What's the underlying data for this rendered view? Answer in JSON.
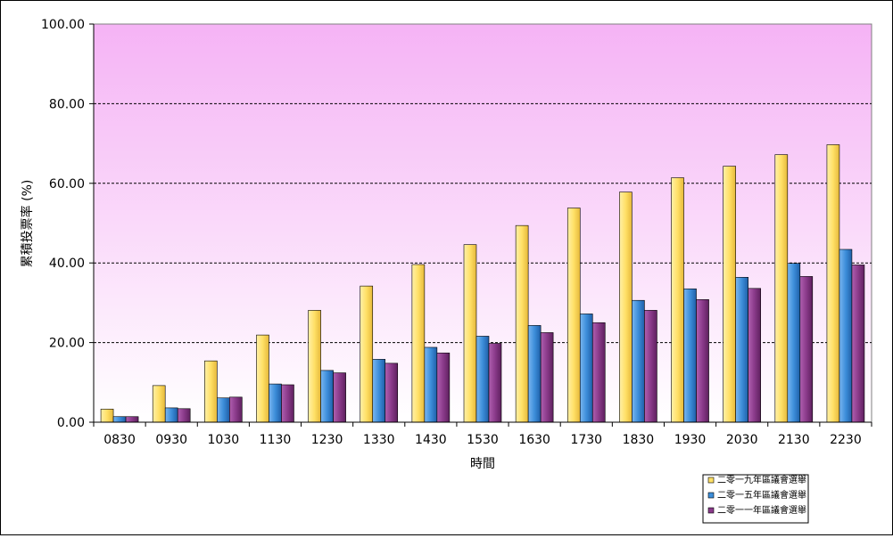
{
  "chart_data": {
    "type": "bar",
    "ylabel": "累積投票率 (%)",
    "xlabel": "時間",
    "ylim": [
      0,
      100
    ],
    "yticks": [
      "0.00",
      "20.00",
      "40.00",
      "60.00",
      "80.00",
      "100.00"
    ],
    "grid": "horizontal dashed",
    "legend_position": "bottom-right",
    "categories": [
      "0830",
      "0930",
      "1030",
      "1130",
      "1230",
      "1330",
      "1430",
      "1530",
      "1630",
      "1730",
      "1830",
      "1930",
      "2030",
      "2130",
      "2230"
    ],
    "series": [
      {
        "name": "二零一九年區議會選舉",
        "color": "#ffe066",
        "values": [
          3.3,
          9.2,
          15.4,
          21.9,
          28.1,
          34.2,
          39.6,
          44.6,
          49.4,
          53.8,
          57.8,
          61.4,
          64.3,
          67.2,
          69.7
        ]
      },
      {
        "name": "二零一五年區議會選舉",
        "color": "#3d8eda",
        "values": [
          1.4,
          3.6,
          6.1,
          9.6,
          13.0,
          15.8,
          18.8,
          21.6,
          24.3,
          27.2,
          30.6,
          33.5,
          36.4,
          39.9,
          43.4
        ]
      },
      {
        "name": "二零一一年區議會選舉",
        "color": "#8a3a8a",
        "values": [
          1.4,
          3.4,
          6.3,
          9.4,
          12.4,
          14.8,
          17.4,
          19.8,
          22.5,
          25.0,
          28.1,
          30.8,
          33.6,
          36.6,
          39.5
        ]
      }
    ]
  }
}
